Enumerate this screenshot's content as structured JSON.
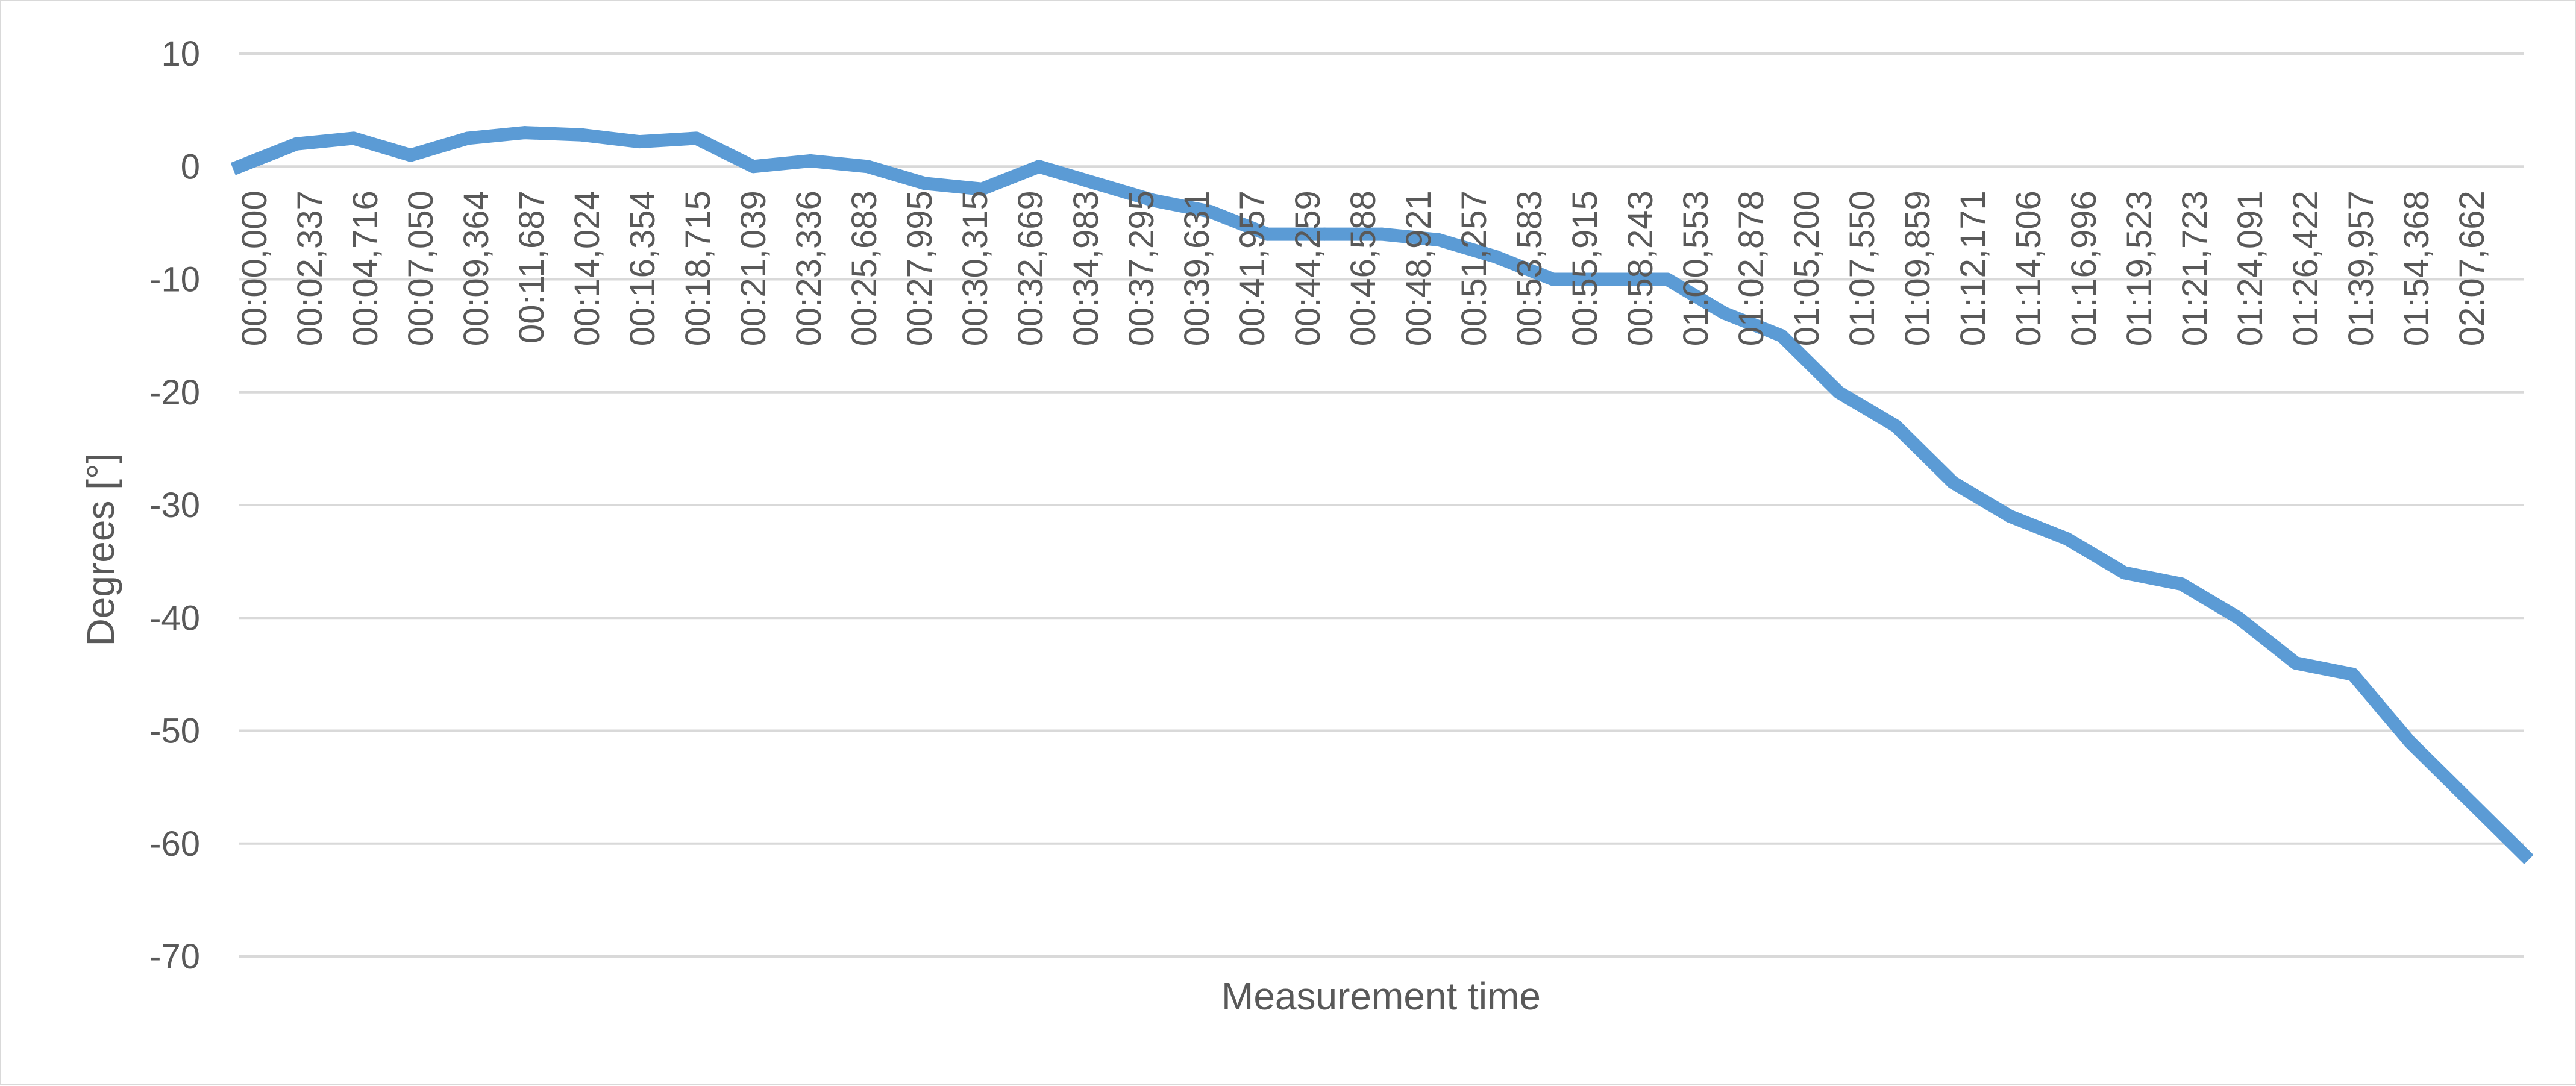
{
  "chart_data": {
    "type": "line",
    "title": "",
    "xlabel": "Measurement time",
    "ylabel": "Degrees  [°]",
    "ylim": [
      -70,
      10
    ],
    "yticks": [
      10,
      0,
      -10,
      -20,
      -30,
      -40,
      -50,
      -60,
      -70
    ],
    "grid": true,
    "legend": "none",
    "x_tick_labels": [
      "00:00,000",
      "00:02,337",
      "00:04,716",
      "00:07,050",
      "00:09,364",
      "00:11,687",
      "00:14,024",
      "00:16,354",
      "00:18,715",
      "00:21,039",
      "00:23,336",
      "00:25,683",
      "00:27,995",
      "00:30,315",
      "00:32,669",
      "00:34,983",
      "00:37,295",
      "00:39,631",
      "00:41,957",
      "00:44,259",
      "00:46,588",
      "00:48,921",
      "00:51,257",
      "00:53,583",
      "00:55,915",
      "00:58,243",
      "01:00,553",
      "01:02,878",
      "01:05,200",
      "01:07,550",
      "01:09,859",
      "01:12,171",
      "01:14,506",
      "01:16,996",
      "01:19,523",
      "01:21,723",
      "01:24,091",
      "01:26,422",
      "01:39,957",
      "01:54,368",
      "02:07,662"
    ],
    "series": [
      {
        "color": "#5b9bd5",
        "values": [
          0,
          2,
          2.5,
          1,
          2.5,
          3,
          2.8,
          2.2,
          2.5,
          0,
          0.5,
          0,
          -1.5,
          -2,
          0,
          -1.5,
          -3,
          -4,
          -6,
          -6,
          -6,
          -6.5,
          -8,
          -10,
          -10,
          -10,
          -13,
          -15,
          -20,
          -23,
          -28,
          -31,
          -33,
          -36,
          -37,
          -40,
          -44,
          -45,
          -51,
          -56,
          -61
        ]
      }
    ]
  }
}
